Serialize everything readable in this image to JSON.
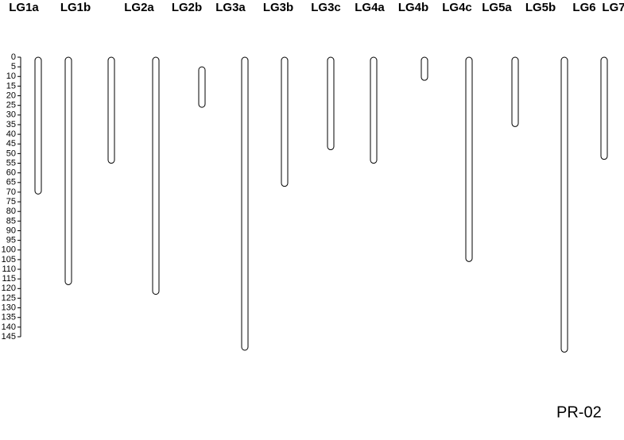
{
  "chart_data": {
    "type": "linkage-map",
    "categories": [
      "LG1a",
      "LG1b",
      "LG2a",
      "LG2b",
      "LG3a",
      "LG3b",
      "LG3c",
      "LG4a",
      "LG4b",
      "LG4c",
      "LG5a",
      "LG5b",
      "LG6",
      "LG7"
    ],
    "ranges": [
      [
        0,
        71
      ],
      [
        0,
        118
      ],
      [
        0,
        55
      ],
      [
        0,
        123
      ],
      [
        5,
        26
      ],
      [
        0,
        152
      ],
      [
        0,
        67
      ],
      [
        0,
        48
      ],
      [
        0,
        55
      ],
      [
        0,
        12
      ],
      [
        0,
        106
      ],
      [
        0,
        36
      ],
      [
        0,
        153
      ],
      [
        0,
        53
      ]
    ],
    "ylim": [
      0,
      145
    ],
    "yticks": [
      0,
      5,
      10,
      15,
      20,
      25,
      30,
      35,
      40,
      45,
      50,
      55,
      60,
      65,
      70,
      75,
      80,
      85,
      90,
      95,
      100,
      105,
      110,
      115,
      120,
      125,
      130,
      135,
      140,
      145
    ],
    "footer": "PR-02"
  }
}
